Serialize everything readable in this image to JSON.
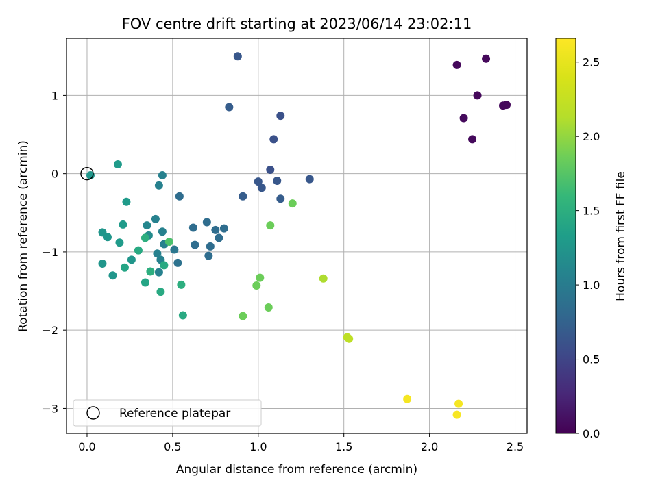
{
  "chart_data": {
    "type": "scatter",
    "title": "FOV centre drift starting at 2023/06/14 23:02:11",
    "xlabel": "Angular distance from reference (arcmin)",
    "ylabel": "Rotation from reference (arcmin)",
    "xlim": [
      -0.12,
      2.57
    ],
    "ylim": [
      -3.32,
      1.73
    ],
    "xticks": [
      0.0,
      0.5,
      1.0,
      1.5,
      2.0,
      2.5
    ],
    "yticks": [
      -3,
      -2,
      -1,
      0,
      1
    ],
    "xtick_labels": [
      "0.0",
      "0.5",
      "1.0",
      "1.5",
      "2.0",
      "2.5"
    ],
    "ytick_labels": [
      "−3",
      "−2",
      "−1",
      "0",
      "1"
    ],
    "grid": true,
    "colormap": "viridis",
    "colorbar": {
      "label": "Hours from first FF file",
      "range": [
        0.0,
        2.66
      ],
      "ticks": [
        0.0,
        0.5,
        1.0,
        1.5,
        2.0,
        2.5
      ],
      "tick_labels": [
        "0.0",
        "0.5",
        "1.0",
        "1.5",
        "2.0",
        "2.5"
      ]
    },
    "legend": {
      "label": "Reference platepar",
      "position": "lower-left"
    },
    "reference_point": {
      "x": 0.0,
      "y": 0.0
    },
    "points": [
      {
        "x": 2.16,
        "y": 1.39,
        "c": 0.05
      },
      {
        "x": 2.33,
        "y": 1.47,
        "c": 0.05
      },
      {
        "x": 2.28,
        "y": 1.0,
        "c": 0.05
      },
      {
        "x": 2.43,
        "y": 0.87,
        "c": 0.05
      },
      {
        "x": 2.45,
        "y": 0.88,
        "c": 0.05
      },
      {
        "x": 2.2,
        "y": 0.71,
        "c": 0.06
      },
      {
        "x": 2.25,
        "y": 0.44,
        "c": 0.06
      },
      {
        "x": 0.88,
        "y": 1.5,
        "c": 0.65
      },
      {
        "x": 0.83,
        "y": 0.85,
        "c": 0.7
      },
      {
        "x": 1.13,
        "y": 0.74,
        "c": 0.6
      },
      {
        "x": 1.09,
        "y": 0.44,
        "c": 0.6
      },
      {
        "x": 1.07,
        "y": 0.05,
        "c": 0.6
      },
      {
        "x": 1.0,
        "y": -0.1,
        "c": 0.65
      },
      {
        "x": 1.02,
        "y": -0.18,
        "c": 0.65
      },
      {
        "x": 1.11,
        "y": -0.09,
        "c": 0.65
      },
      {
        "x": 1.3,
        "y": -0.07,
        "c": 0.65
      },
      {
        "x": 0.91,
        "y": -0.29,
        "c": 0.7
      },
      {
        "x": 1.13,
        "y": -0.32,
        "c": 0.7
      },
      {
        "x": 0.54,
        "y": -0.29,
        "c": 0.85
      },
      {
        "x": 0.62,
        "y": -0.69,
        "c": 0.85
      },
      {
        "x": 0.7,
        "y": -0.62,
        "c": 0.85
      },
      {
        "x": 0.75,
        "y": -0.72,
        "c": 0.85
      },
      {
        "x": 0.8,
        "y": -0.7,
        "c": 0.85
      },
      {
        "x": 0.77,
        "y": -0.82,
        "c": 0.85
      },
      {
        "x": 0.63,
        "y": -0.91,
        "c": 0.85
      },
      {
        "x": 0.72,
        "y": -0.93,
        "c": 0.85
      },
      {
        "x": 0.71,
        "y": -1.05,
        "c": 0.85
      },
      {
        "x": 0.53,
        "y": -1.14,
        "c": 0.9
      },
      {
        "x": 0.51,
        "y": -0.97,
        "c": 0.95
      },
      {
        "x": 0.44,
        "y": -0.02,
        "c": 1.05
      },
      {
        "x": 0.42,
        "y": -0.15,
        "c": 1.05
      },
      {
        "x": 0.4,
        "y": -0.58,
        "c": 1.05
      },
      {
        "x": 0.44,
        "y": -0.74,
        "c": 1.05
      },
      {
        "x": 0.45,
        "y": -0.9,
        "c": 1.05
      },
      {
        "x": 0.41,
        "y": -1.02,
        "c": 1.05
      },
      {
        "x": 0.43,
        "y": -1.1,
        "c": 1.05
      },
      {
        "x": 0.42,
        "y": -1.26,
        "c": 1.05
      },
      {
        "x": 0.35,
        "y": -0.66,
        "c": 1.1
      },
      {
        "x": 0.36,
        "y": -0.79,
        "c": 1.15
      },
      {
        "x": 0.02,
        "y": -0.02,
        "c": 1.25
      },
      {
        "x": 0.18,
        "y": 0.12,
        "c": 1.3
      },
      {
        "x": 0.23,
        "y": -0.36,
        "c": 1.3
      },
      {
        "x": 0.09,
        "y": -0.75,
        "c": 1.25
      },
      {
        "x": 0.12,
        "y": -0.81,
        "c": 1.25
      },
      {
        "x": 0.21,
        "y": -0.65,
        "c": 1.3
      },
      {
        "x": 0.19,
        "y": -0.88,
        "c": 1.3
      },
      {
        "x": 0.09,
        "y": -1.15,
        "c": 1.25
      },
      {
        "x": 0.15,
        "y": -1.3,
        "c": 1.25
      },
      {
        "x": 0.26,
        "y": -1.1,
        "c": 1.25
      },
      {
        "x": 0.22,
        "y": -1.2,
        "c": 1.4
      },
      {
        "x": 0.3,
        "y": -0.98,
        "c": 1.45
      },
      {
        "x": 0.34,
        "y": -0.82,
        "c": 1.5
      },
      {
        "x": 0.34,
        "y": -1.39,
        "c": 1.4
      },
      {
        "x": 0.37,
        "y": -1.25,
        "c": 1.5
      },
      {
        "x": 0.45,
        "y": -1.17,
        "c": 1.45
      },
      {
        "x": 0.43,
        "y": -1.51,
        "c": 1.45
      },
      {
        "x": 0.55,
        "y": -1.42,
        "c": 1.5
      },
      {
        "x": 0.56,
        "y": -1.81,
        "c": 1.45
      },
      {
        "x": 0.48,
        "y": -0.87,
        "c": 1.7
      },
      {
        "x": 1.2,
        "y": -0.38,
        "c": 1.85
      },
      {
        "x": 1.07,
        "y": -0.66,
        "c": 1.85
      },
      {
        "x": 1.01,
        "y": -1.33,
        "c": 1.85
      },
      {
        "x": 0.99,
        "y": -1.43,
        "c": 1.85
      },
      {
        "x": 1.06,
        "y": -1.71,
        "c": 1.85
      },
      {
        "x": 0.91,
        "y": -1.82,
        "c": 1.85
      },
      {
        "x": 1.38,
        "y": -1.34,
        "c": 2.1
      },
      {
        "x": 1.52,
        "y": -2.09,
        "c": 2.2
      },
      {
        "x": 1.53,
        "y": -2.11,
        "c": 2.2
      },
      {
        "x": 1.87,
        "y": -2.88,
        "c": 2.6
      },
      {
        "x": 2.17,
        "y": -2.94,
        "c": 2.6
      },
      {
        "x": 2.16,
        "y": -3.08,
        "c": 2.62
      }
    ]
  }
}
